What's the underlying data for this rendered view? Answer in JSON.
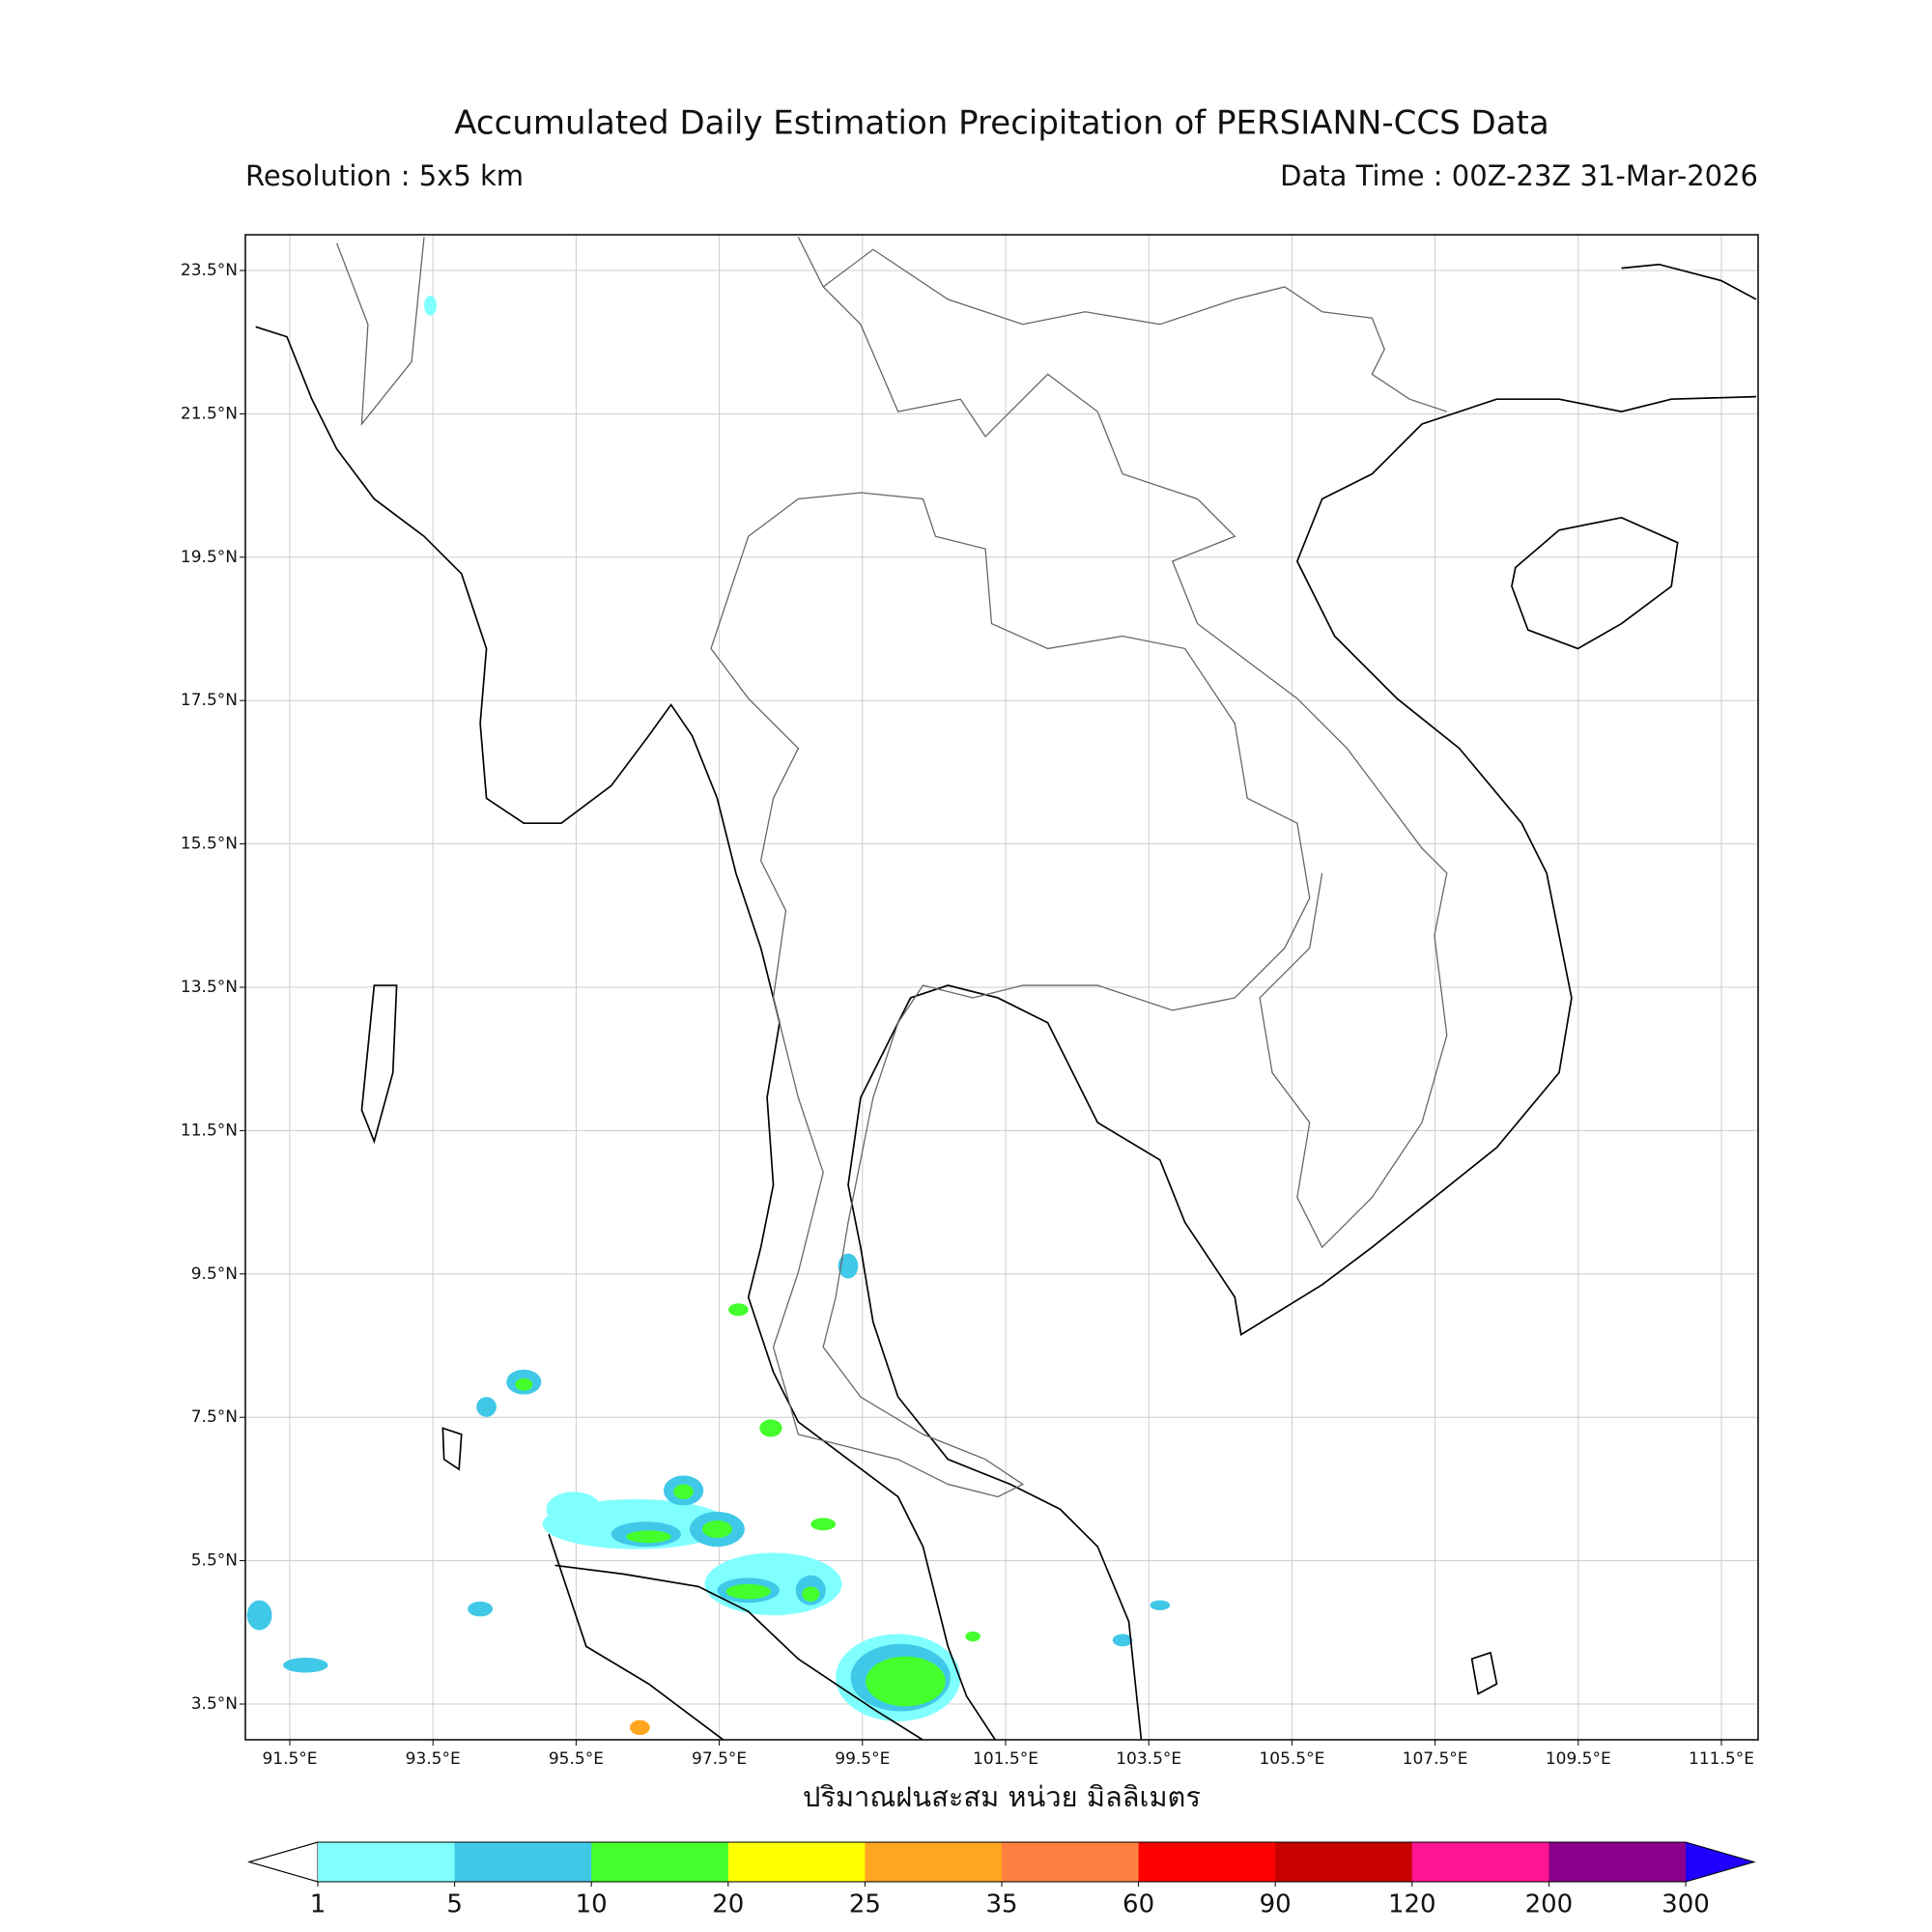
{
  "map": {
    "title": "Accumulated Daily Estimation Precipitation of PERSIANN-CCS Data",
    "resolution": "Resolution : 5x5 km",
    "data_time": "Data Time : 00Z-23Z 31-Mar-2026",
    "lat_ticks": [
      "23.5°N",
      "21.5°N",
      "19.5°N",
      "17.5°N",
      "15.5°N",
      "13.5°N",
      "11.5°N",
      "9.5°N",
      "7.5°N",
      "5.5°N",
      "3.5°N"
    ],
    "lon_ticks": [
      "91.5°E",
      "93.5°E",
      "95.5°E",
      "97.5°E",
      "99.5°E",
      "101.5°E",
      "103.5°E",
      "105.5°E",
      "107.5°E",
      "109.5°E",
      "111.5°E"
    ],
    "xlabel": "ปริมาณฝนสะสม หน่วย มิลลิเมตร",
    "colorbar": {
      "levels": [
        "1",
        "5",
        "10",
        "20",
        "25",
        "35",
        "60",
        "90",
        "120",
        "200",
        "300"
      ],
      "colors": [
        "#80ffff",
        "#40c8e8",
        "#44ff2c",
        "#ffff00",
        "#ffa520",
        "#ff8040",
        "#ff0000",
        "#c80000",
        "#ff1493",
        "#8b008b"
      ],
      "under_color": "#ffffff",
      "over_color": "#2000ff"
    }
  }
}
